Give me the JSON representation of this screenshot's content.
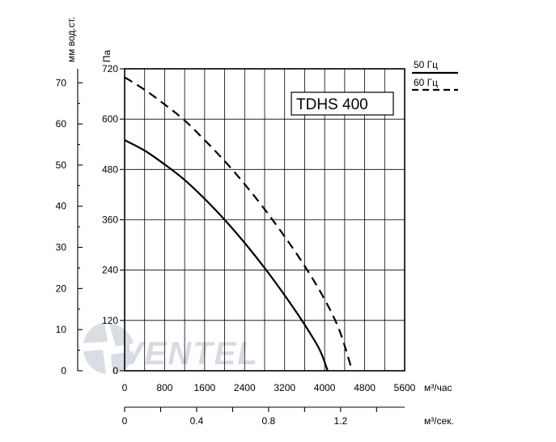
{
  "chart_data": {
    "type": "line",
    "model_label": "TDHS 400",
    "watermark": "VENTEL",
    "x_axis_flow_hour": {
      "unit": "м³/час",
      "ticks": [
        "0",
        "800",
        "1600",
        "2400",
        "3200",
        "4000",
        "4800",
        "5600"
      ],
      "range": [
        0,
        5600
      ]
    },
    "x_axis_flow_sec": {
      "unit": "м³/сек.",
      "ticks": [
        "0",
        "0.4",
        "0.8",
        "1.2"
      ],
      "range": [
        0,
        1.556
      ]
    },
    "y_axis_pa": {
      "unit": "Па",
      "ticks": [
        "0",
        "120",
        "240",
        "360",
        "480",
        "600",
        "720"
      ],
      "range": [
        0,
        720
      ]
    },
    "y_axis_mm": {
      "unit": "мм вод.ст.",
      "ticks": [
        "0",
        "10",
        "20",
        "30",
        "40",
        "50",
        "60",
        "70"
      ],
      "range": [
        0,
        73.4
      ]
    },
    "legend_position": "top-right",
    "grid": true,
    "series": [
      {
        "name": "50 Гц",
        "style": "solid",
        "points": [
          [
            0,
            550
          ],
          [
            400,
            525
          ],
          [
            800,
            492
          ],
          [
            1200,
            455
          ],
          [
            1600,
            410
          ],
          [
            2000,
            360
          ],
          [
            2400,
            305
          ],
          [
            2800,
            245
          ],
          [
            3200,
            180
          ],
          [
            3600,
            110
          ],
          [
            3900,
            50
          ],
          [
            4060,
            0
          ]
        ]
      },
      {
        "name": "60 Гц",
        "style": "dashed",
        "points": [
          [
            0,
            700
          ],
          [
            400,
            670
          ],
          [
            800,
            635
          ],
          [
            1200,
            597
          ],
          [
            1600,
            550
          ],
          [
            2000,
            500
          ],
          [
            2400,
            445
          ],
          [
            2800,
            385
          ],
          [
            3200,
            320
          ],
          [
            3600,
            250
          ],
          [
            4000,
            170
          ],
          [
            4300,
            95
          ],
          [
            4550,
            0
          ]
        ]
      }
    ]
  }
}
